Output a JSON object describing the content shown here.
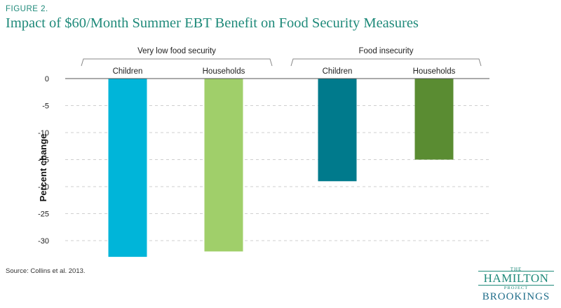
{
  "figure_label": "FIGURE 2.",
  "source": "Source: Collins et al. 2013.",
  "logo": {
    "the": "THE",
    "hamilton": "HAMILTON",
    "project": "PROJECT",
    "brookings": "BROOKINGS"
  },
  "chart_data": {
    "type": "bar",
    "title": "Impact of $60/Month Summer EBT Benefit on Food Security Measures",
    "ylabel": "Percent change",
    "ylim": [
      -33,
      0
    ],
    "yticks": [
      0,
      -5,
      -10,
      -15,
      -20,
      -25,
      -30
    ],
    "groups": [
      {
        "name": "Very low food security",
        "categories": [
          "Children",
          "Households"
        ]
      },
      {
        "name": "Food insecurity",
        "categories": [
          "Children",
          "Households"
        ]
      }
    ],
    "bars": [
      {
        "group": "Very low food security",
        "category": "Children",
        "value": -33,
        "color": "#00b5d9"
      },
      {
        "group": "Very low food security",
        "category": "Households",
        "value": -32,
        "color": "#a0cf6a"
      },
      {
        "group": "Food insecurity",
        "category": "Children",
        "value": -19,
        "color": "#007a8c"
      },
      {
        "group": "Food insecurity",
        "category": "Households",
        "value": -15,
        "color": "#5a8c32"
      }
    ],
    "grid": "dashed horizontal"
  }
}
